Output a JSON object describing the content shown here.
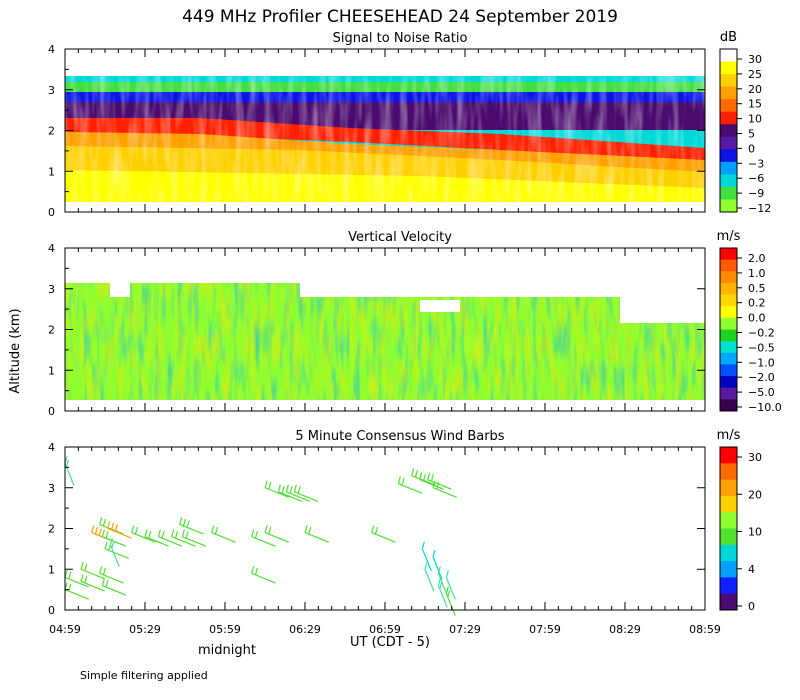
{
  "figure": {
    "title": "449 MHz Profiler CHEESEHEAD 24 September 2019",
    "ylabel": "Altitude (km)",
    "xlabel": "UT  (CDT - 5)",
    "midnight_label": "midnight",
    "footnote": "Simple filtering applied",
    "x_ticks": [
      "04:59",
      "05:29",
      "05:59",
      "06:29",
      "06:59",
      "07:29",
      "07:59",
      "08:29",
      "08:59"
    ],
    "y_ticks": [
      "0",
      "1",
      "2",
      "3",
      "4"
    ]
  },
  "chart_data": [
    {
      "type": "heatmap",
      "title": "Signal to Noise Ratio",
      "colorbar_unit": "dB",
      "colorbar_labels": [
        "30",
        "25",
        "20",
        "15",
        "10",
        "5",
        "0",
        "−3",
        "−6",
        "−9",
        "−12"
      ],
      "colorbar_colors": [
        "#ffffff",
        "#ffff00",
        "#ffd000",
        "#ffa000",
        "#ff6a00",
        "#ff2000",
        "#4a0a6e",
        "#5a1aa0",
        "#0a14e6",
        "#00a0ff",
        "#00d8d8",
        "#40e040",
        "#90ff30"
      ],
      "x_range": [
        "04:59",
        "08:59"
      ],
      "ylim": [
        0,
        4
      ],
      "ylabel": "Altitude (km)"
    },
    {
      "type": "heatmap",
      "title": "Vertical Velocity",
      "colorbar_unit": "m/s",
      "colorbar_labels": [
        "2.0",
        "1.0",
        "0.5",
        "0.2",
        "0.0",
        "−0.2",
        "−0.5",
        "−1.0",
        "−2.0",
        "−5.0",
        "−10.0"
      ],
      "colorbar_colors": [
        "#ff0000",
        "#ff5a00",
        "#ff8c00",
        "#ffb400",
        "#ffd800",
        "#ffff00",
        "#90ff30",
        "#20d020",
        "#00e0d0",
        "#00a8ff",
        "#0050ff",
        "#0000c0",
        "#5a1aa0",
        "#3a0050"
      ],
      "x_range": [
        "04:59",
        "08:59"
      ],
      "ylim": [
        0,
        4
      ],
      "ylabel": "Altitude (km)"
    },
    {
      "type": "scatter",
      "title": "5 Minute Consensus Wind Barbs",
      "colorbar_unit": "m/s",
      "colorbar_labels": [
        "30",
        "20",
        "10",
        "4",
        "0"
      ],
      "colorbar_colors": [
        "#ff0000",
        "#ff6a00",
        "#ffa000",
        "#ffd000",
        "#90ff30",
        "#50e030",
        "#00d8d8",
        "#00a0ff",
        "#1020ff",
        "#4a0a6e"
      ],
      "ylim": [
        0,
        4
      ],
      "ylabel": "Altitude (km)",
      "barbs": [
        {
          "t": 0,
          "z": 3.6,
          "spd": 8
        },
        {
          "t": 0,
          "z": 0.8,
          "spd": 12
        },
        {
          "t": 0,
          "z": 0.5,
          "spd": 12
        },
        {
          "t": 6,
          "z": 1.0,
          "spd": 11
        },
        {
          "t": 6,
          "z": 0.7,
          "spd": 11
        },
        {
          "t": 10,
          "z": 1.9,
          "spd": 16
        },
        {
          "t": 13,
          "z": 2.1,
          "spd": 12
        },
        {
          "t": 14,
          "z": 1.8,
          "spd": 12
        },
        {
          "t": 15,
          "z": 1.5,
          "spd": 10
        },
        {
          "t": 16,
          "z": 2.0,
          "spd": 14
        },
        {
          "t": 17,
          "z": 1.6,
          "spd": 8
        },
        {
          "t": 13,
          "z": 0.9,
          "spd": 11
        },
        {
          "t": 14,
          "z": 0.6,
          "spd": 12
        },
        {
          "t": 25,
          "z": 1.9,
          "spd": 11
        },
        {
          "t": 30,
          "z": 1.8,
          "spd": 11
        },
        {
          "t": 35,
          "z": 1.8,
          "spd": 12
        },
        {
          "t": 40,
          "z": 1.8,
          "spd": 12
        },
        {
          "t": 43,
          "z": 2.1,
          "spd": 13
        },
        {
          "t": 44,
          "z": 1.8,
          "spd": 12
        },
        {
          "t": 55,
          "z": 1.9,
          "spd": 11
        },
        {
          "t": 70,
          "z": 1.8,
          "spd": 11
        },
        {
          "t": 70,
          "z": 0.9,
          "spd": 12
        },
        {
          "t": 75,
          "z": 1.9,
          "spd": 12
        },
        {
          "t": 75,
          "z": 3.0,
          "spd": 11
        },
        {
          "t": 80,
          "z": 2.9,
          "spd": 12
        },
        {
          "t": 83,
          "z": 2.9,
          "spd": 12
        },
        {
          "t": 86,
          "z": 2.9,
          "spd": 12
        },
        {
          "t": 90,
          "z": 1.9,
          "spd": 11
        },
        {
          "t": 115,
          "z": 1.9,
          "spd": 11
        },
        {
          "t": 125,
          "z": 3.1,
          "spd": 12
        },
        {
          "t": 130,
          "z": 3.3,
          "spd": 12
        },
        {
          "t": 133,
          "z": 3.2,
          "spd": 12
        },
        {
          "t": 136,
          "z": 3.2,
          "spd": 12
        },
        {
          "t": 138,
          "z": 3.0,
          "spd": 12
        },
        {
          "t": 134,
          "z": 1.5,
          "spd": 5
        },
        {
          "t": 138,
          "z": 1.3,
          "spd": 5
        },
        {
          "t": 135,
          "z": 1.0,
          "spd": 6
        },
        {
          "t": 140,
          "z": 0.9,
          "spd": 7
        },
        {
          "t": 143,
          "z": 0.8,
          "spd": 6
        },
        {
          "t": 140,
          "z": 0.6,
          "spd": 8
        },
        {
          "t": 143,
          "z": 0.4,
          "spd": 9
        }
      ]
    }
  ]
}
